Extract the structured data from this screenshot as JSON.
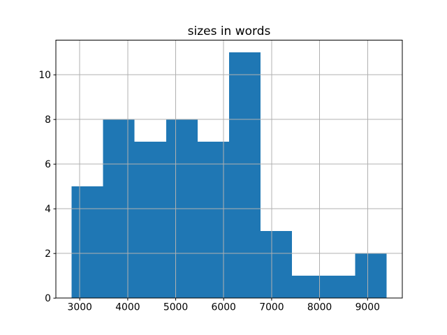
{
  "chart_data": {
    "type": "bar",
    "subtype": "histogram",
    "title": "sizes in words",
    "xlabel": "",
    "ylabel": "",
    "bin_edges": [
      2830,
      3486.6,
      4143.2,
      4799.8,
      5456.4,
      6113.0,
      6769.6,
      7426.2,
      8082.8,
      8739.4,
      9396
    ],
    "counts": [
      5,
      8,
      7,
      8,
      7,
      11,
      3,
      1,
      1,
      2
    ],
    "x_ticks": [
      3000,
      4000,
      5000,
      6000,
      7000,
      8000,
      9000
    ],
    "y_ticks": [
      0,
      2,
      4,
      6,
      8,
      10
    ],
    "xlim": [
      2502,
      9724
    ],
    "ylim": [
      0,
      11.55
    ],
    "grid": true,
    "grid_above_bars": true,
    "legend": null,
    "colors": {
      "bar": "#1f77b4",
      "grid": "#b0b0b0",
      "spine": "#000000",
      "text": "#000000",
      "background": "#ffffff"
    }
  }
}
